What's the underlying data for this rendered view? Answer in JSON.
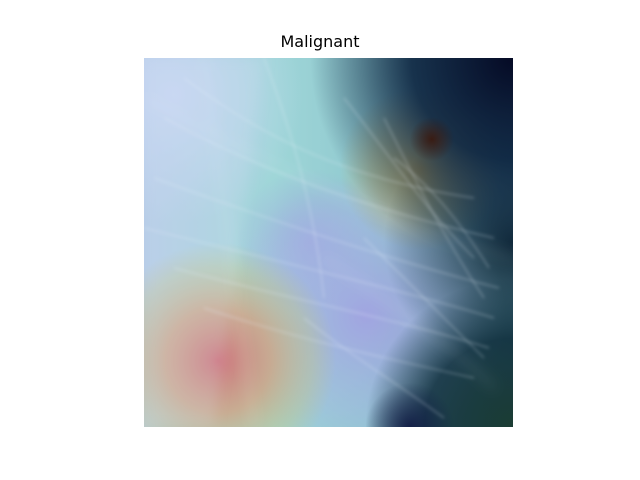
{
  "figure": {
    "title": "Malignant"
  },
  "image": {
    "description_icon": "mammogram-heatmap-overlay",
    "colormap": "jet",
    "colors": {
      "hot": "#c8707a",
      "warm": "#c8b070",
      "cyan": "#8ed8d8",
      "lavender": "#a8a0e0",
      "pale_blue": "#c0d4f0",
      "dark_navy": "#0a1430",
      "dark_teal": "#0f3c3a"
    }
  }
}
